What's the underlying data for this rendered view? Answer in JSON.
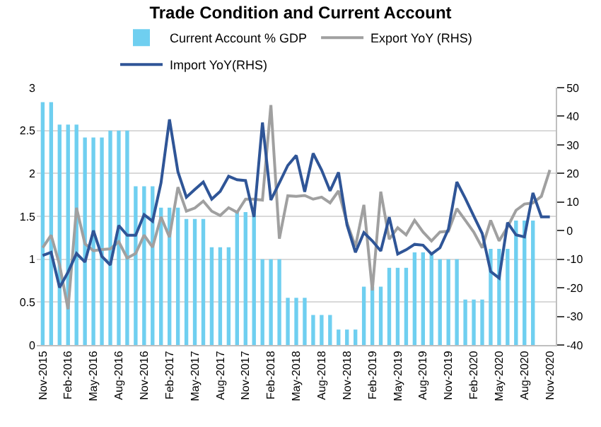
{
  "chart_data": {
    "type": "bar",
    "title": "Trade Condition and Current Account",
    "categories": [
      "Nov-2015",
      null,
      null,
      "Feb-2016",
      null,
      null,
      "May-2016",
      null,
      null,
      "Aug-2016",
      null,
      null,
      "Nov-2016",
      null,
      null,
      "Feb-2017",
      null,
      null,
      "May-2017",
      null,
      null,
      "Aug-2017",
      null,
      null,
      "Nov-2017",
      null,
      null,
      "Feb-2018",
      null,
      null,
      "May-2018",
      null,
      null,
      "Aug-2018",
      null,
      null,
      "Nov-2018",
      null,
      null,
      "Feb-2019",
      null,
      null,
      "May-2019",
      null,
      null,
      "Aug-2019",
      null,
      null,
      "Nov-2019",
      null,
      null,
      "Feb-2020",
      null,
      null,
      "May-2020",
      null,
      null,
      "Aug-2020",
      null,
      null,
      "Nov-2020"
    ],
    "series": [
      {
        "name": "Current Account % GDP",
        "color": "#6fcff0",
        "values": [
          2.83,
          2.83,
          2.57,
          2.57,
          2.57,
          2.42,
          2.42,
          2.42,
          2.5,
          2.5,
          2.5,
          1.85,
          1.85,
          1.85,
          1.6,
          1.6,
          1.6,
          1.47,
          1.47,
          1.47,
          1.14,
          1.14,
          1.14,
          1.55,
          1.55,
          1.55,
          1.0,
          1.0,
          1.0,
          0.55,
          0.55,
          0.55,
          0.35,
          0.35,
          0.35,
          0.18,
          0.18,
          0.18,
          0.68,
          0.68,
          0.68,
          0.9,
          0.9,
          0.9,
          1.08,
          1.08,
          1.08,
          1.0,
          1.0,
          1.0,
          0.53,
          0.53,
          0.53,
          1.12,
          1.12,
          1.12,
          1.45,
          1.45,
          1.45,
          null,
          null
        ]
      },
      {
        "name": "Export YoY (RHS)",
        "type": "line",
        "axis": "y2",
        "color": "#a0a0a0",
        "values": [
          -6,
          -1.6,
          -12,
          -27.5,
          8,
          -4.6,
          -7,
          -6.6,
          -6.4,
          -3.9,
          -9.6,
          -8,
          -1.6,
          -5.8,
          4.8,
          -2.3,
          15.2,
          6.8,
          7.9,
          10.3,
          6.8,
          5.3,
          8,
          6.4,
          11,
          11,
          10.7,
          43.9,
          -2.8,
          12.2,
          12,
          12.3,
          11,
          11.7,
          9.7,
          13.9,
          2.8,
          -5.6,
          9,
          -20.9,
          13.6,
          -3,
          1,
          -1.5,
          3.6,
          -0.5,
          -3.6,
          -0.5,
          -0.2,
          7.7,
          3.6,
          -0.5,
          -6,
          3.6,
          -3.6,
          1.3,
          7.1,
          9.3,
          9.7,
          12,
          21.2
        ]
      },
      {
        "name": "Import YoY(RHS)",
        "type": "line",
        "axis": "y2",
        "color": "#2f5597",
        "values": [
          -8.7,
          -7.6,
          -19.9,
          -14.5,
          -8,
          -11,
          0,
          -9,
          -12,
          1.8,
          -1.6,
          -1.6,
          5.6,
          3.3,
          16.7,
          38.9,
          20.6,
          11.7,
          14.4,
          17,
          11,
          13.7,
          19,
          17.8,
          17.5,
          4.8,
          37.8,
          10.7,
          16.7,
          22.8,
          26.3,
          13.6,
          27,
          21.2,
          13.9,
          20.4,
          2,
          -7.6,
          -0.7,
          -3.6,
          -7.1,
          4.7,
          -8.2,
          -6.7,
          -4.8,
          -5.1,
          -8.2,
          -6,
          0.5,
          17,
          11.3,
          5.1,
          -1,
          -14.3,
          -16.6,
          2.8,
          -1.5,
          -2.2,
          13.2,
          4.8,
          4.8
        ]
      }
    ],
    "ylim": [
      0,
      3
    ],
    "yticks": [
      0,
      0.5,
      1,
      1.5,
      2,
      2.5,
      3
    ],
    "y2lim": [
      -40,
      50
    ],
    "y2ticks": [
      -40,
      -30,
      -20,
      -10,
      0,
      10,
      20,
      30,
      40,
      50
    ],
    "grid": "y",
    "legend": "top",
    "marker": "none",
    "line_style": "solid"
  }
}
